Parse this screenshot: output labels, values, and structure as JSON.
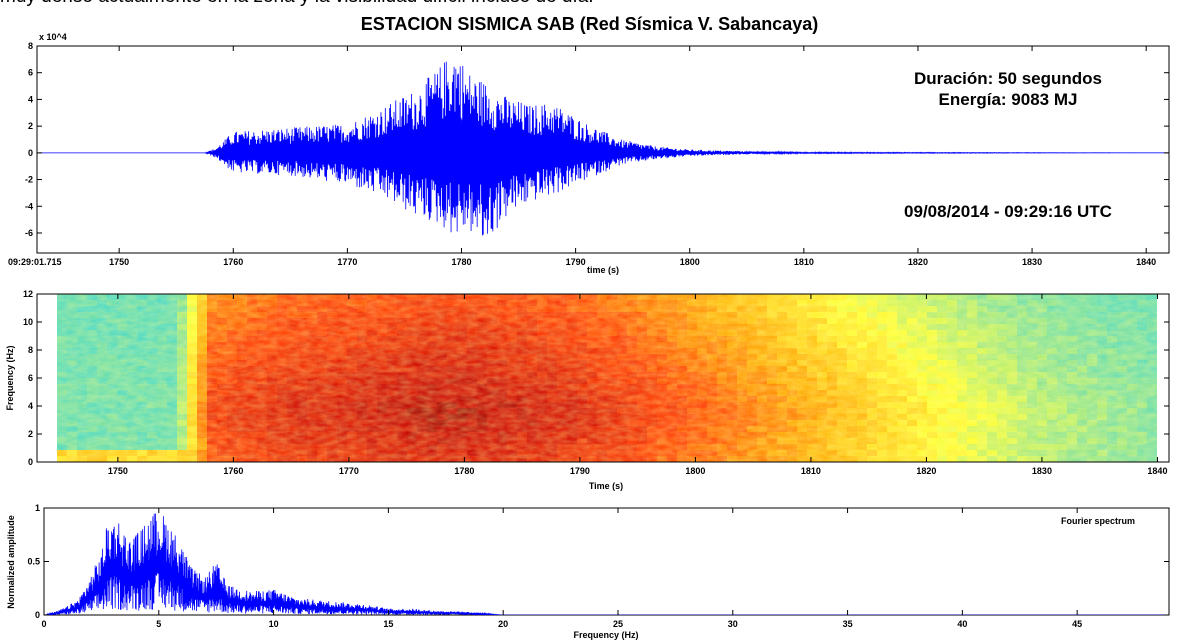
{
  "page": {
    "cropped_caption": "muy denso actualmente en la zona y la visibilidad difícil incluso de día.",
    "title": "ESTACION SISMICA SAB (Red Sísmica V. Sabancaya)"
  },
  "chart_data": [
    {
      "type": "line",
      "name": "seismogram",
      "x_start_label": "09:29:01.715",
      "xlabel": "time (s)",
      "ylabel": "",
      "y_exponent": "x 10^4",
      "xlim": [
        1742.8,
        1842
      ],
      "ylim": [
        -7.5,
        8
      ],
      "xticks": [
        1750,
        1760,
        1770,
        1780,
        1790,
        1800,
        1810,
        1820,
        1830,
        1840
      ],
      "yticks": [
        -6,
        -4,
        -2,
        0,
        2,
        4,
        6,
        8
      ],
      "color": "#0000ff",
      "envelope": {
        "x": [
          1742.8,
          1757.5,
          1758.5,
          1760,
          1765,
          1770,
          1773,
          1776,
          1778,
          1779.5,
          1780.5,
          1782,
          1784,
          1786,
          1788,
          1791,
          1794,
          1797,
          1800,
          1805,
          1810,
          1842
        ],
        "upper": [
          0,
          0,
          0.4,
          1.6,
          1.9,
          2.2,
          3.4,
          4.8,
          6.4,
          8,
          6.2,
          5.4,
          4.2,
          3.6,
          3.8,
          2.2,
          1.0,
          0.5,
          0.25,
          0.12,
          0.05,
          0
        ],
        "lower": [
          0,
          0,
          -0.4,
          -1.5,
          -1.7,
          -2.4,
          -3.3,
          -4.8,
          -5.4,
          -6.3,
          -5.8,
          -7.0,
          -4.8,
          -3.7,
          -3.2,
          -2.0,
          -0.9,
          -0.5,
          -0.25,
          -0.1,
          -0.05,
          0
        ]
      },
      "annotations": [
        "Duración: 50 segundos",
        "Energía: 9083 MJ",
        "09/08/2014 - 09:29:16 UTC"
      ]
    },
    {
      "type": "heatmap",
      "name": "spectrogram",
      "xlabel": "Time (s)",
      "ylabel": "Frequency (Hz)",
      "xlim": [
        1743,
        1841
      ],
      "ylim": [
        0,
        12
      ],
      "xticks": [
        1750,
        1760,
        1770,
        1780,
        1790,
        1800,
        1810,
        1820,
        1830,
        1840
      ],
      "yticks": [
        0,
        2,
        4,
        6,
        8,
        10,
        12
      ],
      "colormap": [
        "#1ad0e6",
        "#7be0a0",
        "#ffff33",
        "#ffa500",
        "#ff3300",
        "#cc0000",
        "#6a0000"
      ]
    },
    {
      "type": "line",
      "name": "fourier-spectrum",
      "legend": "Fourier spectrum",
      "xlabel": "Frequency (Hz)",
      "ylabel": "Normalized amplitude",
      "xlim": [
        0,
        49
      ],
      "ylim": [
        0,
        1
      ],
      "xticks": [
        0,
        5,
        10,
        15,
        20,
        25,
        30,
        35,
        40,
        45
      ],
      "yticks": [
        0,
        0.5,
        1
      ],
      "color": "#0000ff",
      "envelope": {
        "x": [
          0,
          0.5,
          1,
          1.5,
          2,
          2.5,
          2.8,
          3.2,
          3.7,
          4.2,
          4.6,
          5.0,
          5.4,
          5.9,
          6.4,
          7,
          7.5,
          8,
          9,
          10,
          11,
          12,
          13,
          14,
          15,
          16,
          17,
          18,
          19,
          20
        ],
        "upper": [
          0.0,
          0.03,
          0.08,
          0.15,
          0.35,
          0.6,
          0.9,
          0.92,
          0.7,
          0.8,
          0.92,
          1.0,
          0.88,
          0.7,
          0.45,
          0.35,
          0.5,
          0.28,
          0.22,
          0.24,
          0.16,
          0.14,
          0.12,
          0.1,
          0.06,
          0.06,
          0.04,
          0.035,
          0.02,
          0.0
        ]
      }
    }
  ]
}
